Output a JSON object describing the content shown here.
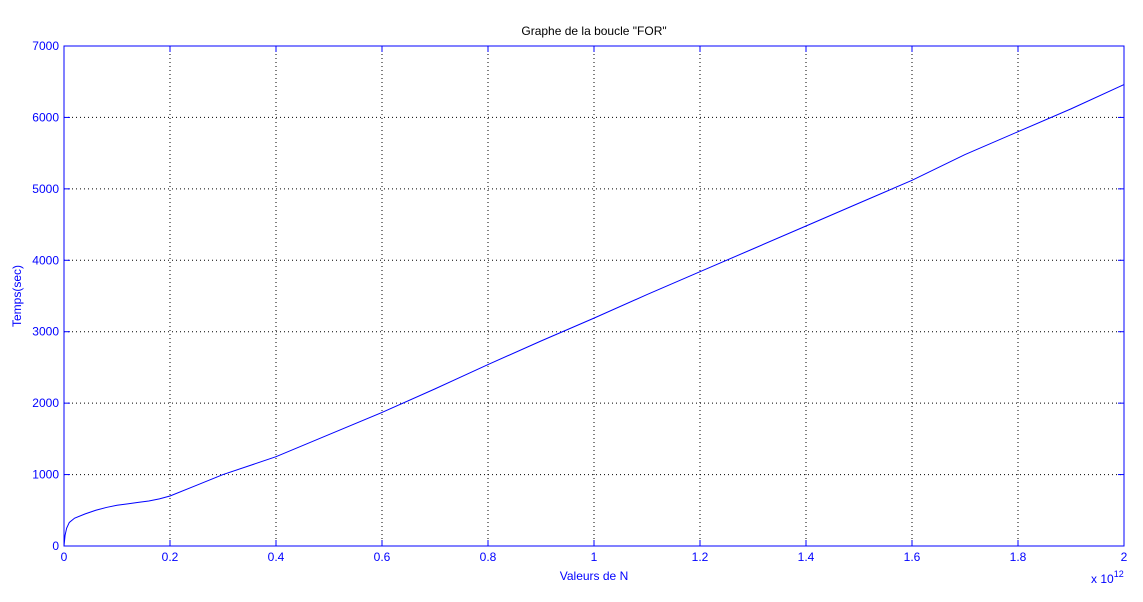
{
  "colors": {
    "axis": "#0000ff",
    "series": "#0000ff",
    "grid": "#000000",
    "title": "#000000",
    "background": "#ffffff"
  },
  "chart_data": {
    "type": "line",
    "title": "Graphe de la boucle \"FOR\"",
    "xlabel": "Valeurs de N",
    "ylabel": "Temps(sec)",
    "x_exponent_base": "x 10",
    "x_exponent_power": "12",
    "xlim": [
      0,
      2
    ],
    "ylim": [
      0,
      7000
    ],
    "grid": true,
    "x_ticks": [
      0,
      0.2,
      0.4,
      0.6,
      0.8,
      1,
      1.2,
      1.4,
      1.6,
      1.8,
      2
    ],
    "x_tick_labels": [
      "0",
      "0.2",
      "0.4",
      "0.6",
      "0.8",
      "1",
      "1.2",
      "1.4",
      "1.6",
      "1.8",
      "2"
    ],
    "y_ticks": [
      0,
      1000,
      2000,
      3000,
      4000,
      5000,
      6000,
      7000
    ],
    "y_tick_labels": [
      "0",
      "1000",
      "2000",
      "3000",
      "4000",
      "5000",
      "6000",
      "7000"
    ],
    "series": [
      {
        "x": [
          0,
          0.002,
          0.005,
          0.01,
          0.02,
          0.04,
          0.06,
          0.08,
          0.1,
          0.12,
          0.14,
          0.16,
          0.18,
          0.2,
          0.25,
          0.3,
          0.4,
          0.5,
          0.6,
          0.7,
          0.8,
          0.9,
          1.0,
          1.1,
          1.2,
          1.3,
          1.4,
          1.5,
          1.6,
          1.7,
          1.8,
          1.9,
          2.0
        ],
        "y": [
          0,
          150,
          250,
          330,
          390,
          450,
          500,
          540,
          570,
          590,
          610,
          630,
          660,
          700,
          850,
          1000,
          1250,
          1560,
          1870,
          2200,
          2540,
          2870,
          3190,
          3520,
          3840,
          4160,
          4480,
          4800,
          5120,
          5480,
          5800,
          6120,
          6460
        ]
      }
    ]
  }
}
